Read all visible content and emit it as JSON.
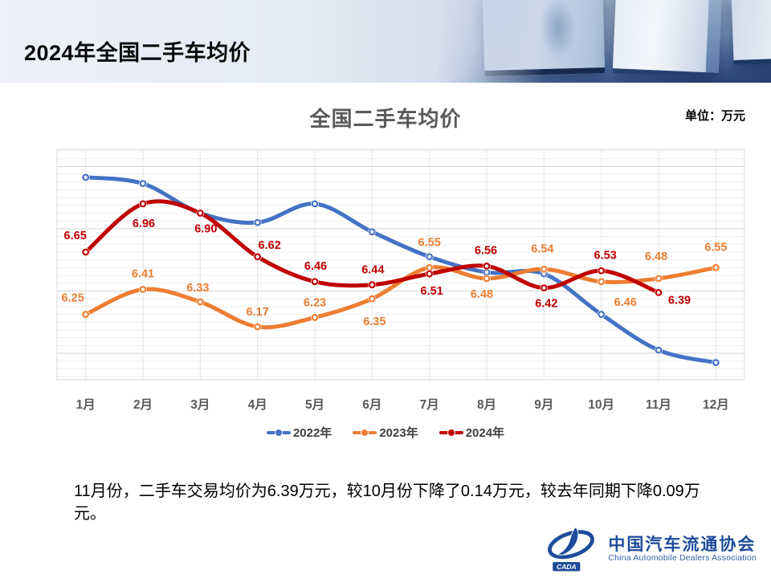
{
  "header": {
    "title": "2024年全国二手车均价"
  },
  "chart": {
    "title": "全国二手车均价",
    "unit_label": "单位：万元"
  },
  "chart_data": {
    "type": "line",
    "title": "全国二手车均价",
    "unit": "万元",
    "categories": [
      "1月",
      "2月",
      "3月",
      "4月",
      "5月",
      "6月",
      "7月",
      "8月",
      "9月",
      "10月",
      "11月",
      "12月"
    ],
    "series": [
      {
        "name": "2022年",
        "color": "#4472C4",
        "show_labels": false,
        "values_estimated": true,
        "values": [
          7.13,
          7.09,
          6.9,
          6.84,
          6.96,
          6.78,
          6.62,
          6.52,
          6.51,
          6.25,
          6.02,
          5.94
        ]
      },
      {
        "name": "2023年",
        "color": "#ED7D31",
        "show_labels": true,
        "values": [
          6.25,
          6.41,
          6.33,
          6.17,
          6.23,
          6.35,
          6.55,
          6.48,
          6.54,
          6.46,
          6.48,
          6.55
        ]
      },
      {
        "name": "2024年",
        "color": "#C00000",
        "show_labels": true,
        "values": [
          6.65,
          6.96,
          6.9,
          6.62,
          6.46,
          6.44,
          6.51,
          6.56,
          6.42,
          6.53,
          6.39
        ]
      }
    ],
    "ylim": [
      5.83,
      7.31
    ],
    "grid": true,
    "legend_position": "bottom",
    "axis_label_color": "#595959"
  },
  "summary": {
    "text": "11月份，二手车交易均价为6.39万元，较10月份下降了0.14万元，较去年同期下降0.09万元。"
  },
  "footer_logo": {
    "cada_text": "CADA",
    "name_cn": "中国汽车流通协会",
    "name_en": "China Automobile Dealers Association"
  }
}
